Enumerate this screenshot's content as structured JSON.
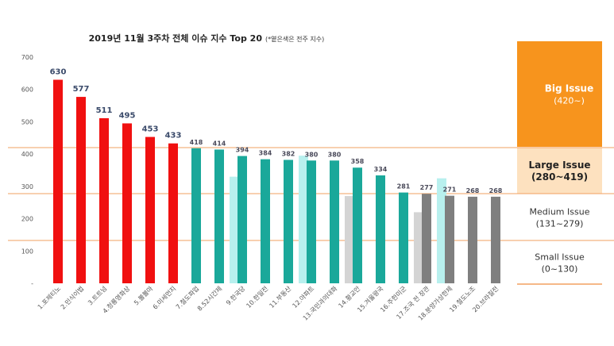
{
  "chart_data": {
    "type": "bar",
    "title": "2019년 11월 3주차 전체 이슈 지수 Top 20",
    "title_note": "(*옅은색은 전주 지수)",
    "ylim": [
      0,
      700
    ],
    "yticks": [
      0,
      100,
      200,
      300,
      400,
      500,
      600,
      700
    ],
    "ytick_labels": [
      "-",
      "100",
      "200",
      "300",
      "400",
      "500",
      "600",
      "700"
    ],
    "grid": false,
    "categories": [
      "1.포제티노",
      "2.민식이법",
      "3.트트넘",
      "4.청룡영화상",
      "5.볼볼마",
      "6.미세먼지",
      "7.철도파업",
      "8.52시간제",
      "9.한국당",
      "10.한일전",
      "11.부동산",
      "12.아파트",
      "13.국민과의대화",
      "14.황교안",
      "15.겨울왕국",
      "16.주한미군",
      "17.조국 전 장관",
      "18.분양가상한제",
      "19.철도노조",
      "20.브라질전"
    ],
    "values": [
      630,
      577,
      511,
      495,
      453,
      433,
      418,
      414,
      394,
      384,
      382,
      380,
      380,
      358,
      334,
      281,
      277,
      271,
      268,
      268
    ],
    "value_labels": [
      "630",
      "577",
      "511",
      "495",
      "453",
      "433",
      "418",
      "414",
      "394",
      "384",
      "382",
      "380",
      "380",
      "358",
      "334",
      "281",
      "277",
      "271",
      "268",
      "268"
    ],
    "prev_week_values": [
      null,
      null,
      null,
      null,
      null,
      null,
      null,
      null,
      330,
      null,
      null,
      395,
      null,
      270,
      null,
      null,
      220,
      325,
      null,
      null
    ],
    "bar_colors": [
      "#f01010",
      "#f01010",
      "#f01010",
      "#f01010",
      "#f01010",
      "#f01010",
      "#1aa89a",
      "#1aa89a",
      "#1aa89a",
      "#1aa89a",
      "#1aa89a",
      "#1aa89a",
      "#1aa89a",
      "#1aa89a",
      "#1aa89a",
      "#1aa89a",
      "#7f7f7f",
      "#7f7f7f",
      "#7f7f7f",
      "#7f7f7f"
    ],
    "prev_bar_colors": [
      null,
      null,
      null,
      null,
      null,
      null,
      null,
      null,
      "#b8f0ee",
      null,
      null,
      "#b8f0ee",
      null,
      "#d4d4d4",
      null,
      null,
      "#d4d4d4",
      "#b8f0ee",
      null,
      null
    ],
    "thresholds": [
      420,
      280,
      131
    ],
    "legend": [
      {
        "title": "Big Issue",
        "range": "(420~)",
        "color": "#f7941d"
      },
      {
        "title": "Large Issue",
        "range": "(280~419)",
        "color": "#fde1bf"
      },
      {
        "title": "Medium Issue",
        "range": "(131~279)",
        "color": "#ffffff"
      },
      {
        "title": "Small Issue",
        "range": "(0~130)",
        "color": "#ffffff"
      }
    ]
  }
}
